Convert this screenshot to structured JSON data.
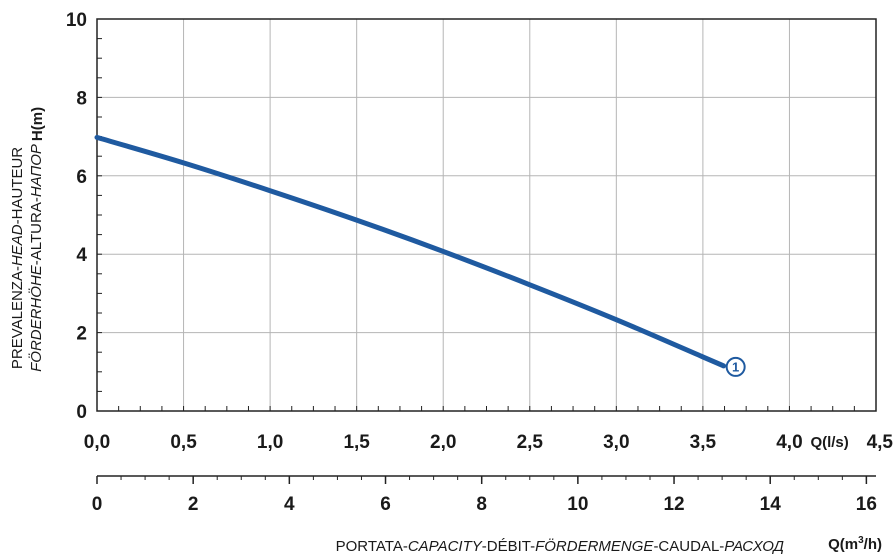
{
  "chart_data": {
    "type": "line",
    "title": "",
    "y_axis": {
      "label_unit": "H(m)",
      "label_line1": [
        {
          "text": "PREVALENZA-",
          "italic": false
        },
        {
          "text": "HEAD",
          "italic": true
        },
        {
          "text": "-HAUTEUR",
          "italic": false
        }
      ],
      "label_line2": [
        {
          "text": "FÖRDERHÖHE",
          "italic": true
        },
        {
          "text": "-ALTURA-",
          "italic": false
        },
        {
          "text": "НАПОР",
          "italic": true
        }
      ],
      "ylim": [
        0,
        10
      ],
      "ticks": [
        0,
        2,
        4,
        6,
        8,
        10
      ],
      "tick_labels": [
        "0",
        "2",
        "4",
        "6",
        "8",
        "10"
      ]
    },
    "x_axis_ls": {
      "unit": "Q(l/s)",
      "xlim": [
        0,
        4.5
      ],
      "ticks": [
        0,
        0.5,
        1.0,
        1.5,
        2.0,
        2.5,
        3.0,
        3.5,
        4.0,
        4.5
      ],
      "tick_labels": [
        "0,0",
        "0,5",
        "1,0",
        "1,5",
        "2,0",
        "2,5",
        "3,0",
        "3,5",
        "4,0",
        "4,5"
      ]
    },
    "x_axis_m3h": {
      "unit_main": "Q(m",
      "unit_sup": "3",
      "unit_end": "/h)",
      "xlim": [
        0,
        16.2
      ],
      "ticks": [
        0,
        2,
        4,
        6,
        8,
        10,
        12,
        14,
        16
      ],
      "tick_labels": [
        "0",
        "2",
        "4",
        "6",
        "8",
        "10",
        "12",
        "14",
        "16"
      ],
      "label": [
        {
          "text": "PORTATA-",
          "italic": false
        },
        {
          "text": "CAPACITY",
          "italic": true
        },
        {
          "text": "-DÉBIT-",
          "italic": false
        },
        {
          "text": "FÖRDERMENGE",
          "italic": true
        },
        {
          "text": "-CAUDAL-",
          "italic": false
        },
        {
          "text": "РАСХОД",
          "italic": true
        }
      ]
    },
    "grid": true,
    "series": [
      {
        "label": "1",
        "color": "#1f5aa0",
        "x": [
          0,
          0.5,
          1.0,
          1.5,
          2.0,
          2.5,
          3.0,
          3.5,
          3.62
        ],
        "y": [
          6.98,
          6.33,
          5.62,
          4.87,
          4.07,
          3.22,
          2.33,
          1.38,
          1.15
        ]
      }
    ]
  }
}
